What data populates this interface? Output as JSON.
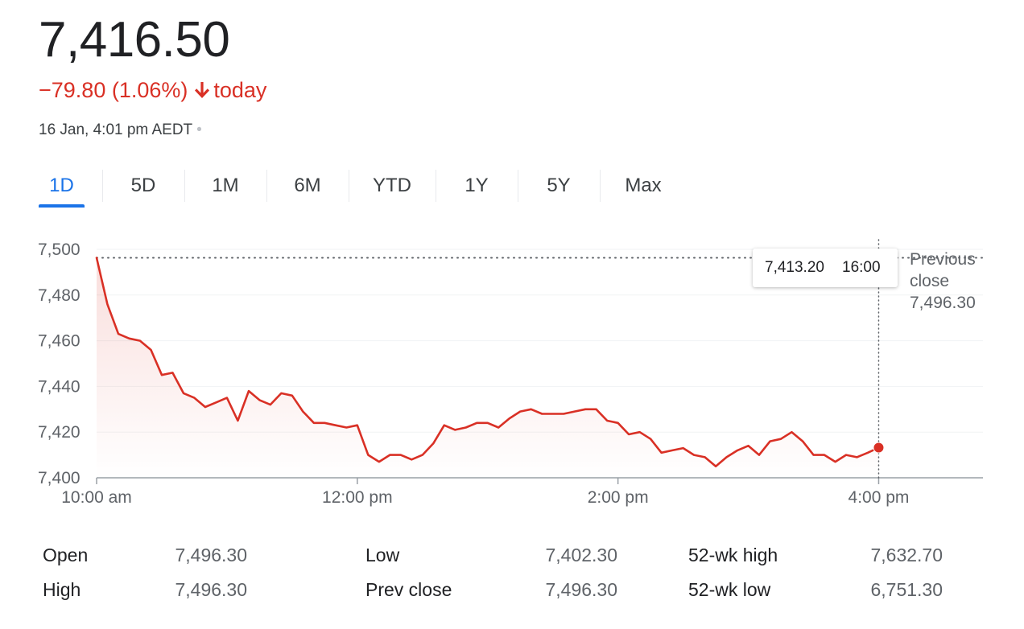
{
  "quote": {
    "price": "7,416.50",
    "change": "−79.80 (1.06%)",
    "change_suffix": "today",
    "timestamp": "16 Jan, 4:01 pm AEDT",
    "separator": "•",
    "down_color": "#d93025"
  },
  "tabs": [
    {
      "label": "1D",
      "active": true
    },
    {
      "label": "5D",
      "active": false
    },
    {
      "label": "1M",
      "active": false
    },
    {
      "label": "6M",
      "active": false
    },
    {
      "label": "YTD",
      "active": false
    },
    {
      "label": "1Y",
      "active": false
    },
    {
      "label": "5Y",
      "active": false
    },
    {
      "label": "Max",
      "active": false
    }
  ],
  "tooltip": {
    "value": "7,413.20",
    "time": "16:00"
  },
  "prev_close": {
    "line1": "Previous",
    "line2": "close",
    "value": "7,496.30"
  },
  "stats": {
    "col1": [
      {
        "label": "Open",
        "value": "7,496.30"
      },
      {
        "label": "High",
        "value": "7,496.30"
      }
    ],
    "col2": [
      {
        "label": "Low",
        "value": "7,402.30"
      },
      {
        "label": "Prev close",
        "value": "7,496.30"
      }
    ],
    "col3": [
      {
        "label": "52-wk high",
        "value": "7,632.70"
      },
      {
        "label": "52-wk low",
        "value": "6,751.30"
      }
    ]
  },
  "chart_data": {
    "type": "line",
    "title": "",
    "xlabel": "",
    "ylabel": "",
    "x_domain_hours": [
      10,
      16.8
    ],
    "ylim": [
      7400,
      7500
    ],
    "yticks": [
      7400,
      7420,
      7440,
      7460,
      7480,
      7500
    ],
    "ytick_labels": [
      "7,400",
      "7,420",
      "7,440",
      "7,460",
      "7,480",
      "7,500"
    ],
    "xticks": [
      10,
      12,
      14,
      16
    ],
    "xtick_labels": [
      "10:00 am",
      "12:00 pm",
      "2:00 pm",
      "4:00 pm"
    ],
    "previous_close": 7496.3,
    "line_color": "#d93025",
    "grid": true,
    "series": [
      {
        "x": [
          10.0,
          10.083,
          10.167,
          10.25,
          10.333,
          10.417,
          10.5,
          10.583,
          10.667,
          10.75,
          10.833,
          10.917,
          11.0,
          11.083,
          11.167,
          11.25,
          11.333,
          11.417,
          11.5,
          11.583,
          11.667,
          11.75,
          11.833,
          11.917,
          12.0,
          12.083,
          12.167,
          12.25,
          12.333,
          12.417,
          12.5,
          12.583,
          12.667,
          12.75,
          12.833,
          12.917,
          13.0,
          13.083,
          13.167,
          13.25,
          13.333,
          13.417,
          13.5,
          13.583,
          13.667,
          13.75,
          13.833,
          13.917,
          14.0,
          14.083,
          14.167,
          14.25,
          14.333,
          14.417,
          14.5,
          14.583,
          14.667,
          14.75,
          14.833,
          14.917,
          15.0,
          15.083,
          15.167,
          15.25,
          15.333,
          15.417,
          15.5,
          15.583,
          15.667,
          15.75,
          15.833,
          15.917,
          16.0
        ],
        "y": [
          7496.3,
          7476,
          7463,
          7461,
          7460,
          7456,
          7445,
          7446,
          7437,
          7435,
          7431,
          7433,
          7435,
          7425,
          7438,
          7434,
          7432,
          7437,
          7436,
          7429,
          7424,
          7424,
          7423,
          7422,
          7423,
          7410,
          7407,
          7410,
          7410,
          7408,
          7410,
          7415,
          7423,
          7421,
          7422,
          7424,
          7424,
          7422,
          7426,
          7429,
          7430,
          7428,
          7428,
          7428,
          7429,
          7430,
          7430,
          7425,
          7424,
          7419,
          7420,
          7417,
          7411,
          7412,
          7413,
          7410,
          7409,
          7405,
          7409,
          7412,
          7414,
          7410,
          7416,
          7417,
          7420,
          7416,
          7410,
          7410,
          7407,
          7410,
          7409,
          7411,
          7413.2
        ]
      }
    ]
  }
}
